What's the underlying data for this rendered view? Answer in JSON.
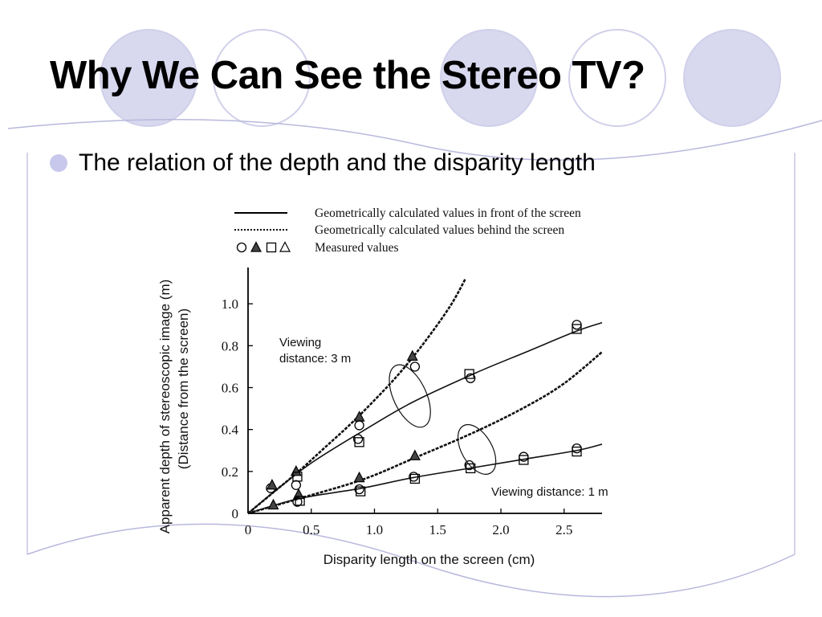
{
  "slide": {
    "title": "Why We Can See the Stereo TV?",
    "bullet": "The relation of the depth and the disparity length"
  },
  "theme": {
    "circle_fill": "#d8d8ee",
    "circle_stroke": "#d0d0ea",
    "accent_line": "#b8b8dd",
    "bullet_color": "#c8c8ec"
  },
  "legend": {
    "front_label": "Geometrically calculated values in front of the screen",
    "behind_label": "Geometrically calculated values behind the screen",
    "measured_label": "Measured values"
  },
  "chart_data": {
    "type": "line",
    "xlabel": "Disparity length on the screen (cm)",
    "ylabel_line1": "Apparent depth of stereoscopic image    (m)",
    "ylabel_line2": "(Distance from the screen)",
    "xlim": [
      0,
      2.8
    ],
    "ylim": [
      0,
      1.15
    ],
    "xticks": [
      0,
      0.5,
      1.0,
      1.5,
      2.0,
      2.5
    ],
    "xtick_labels": [
      "0",
      "0.5",
      "1.0",
      "1.5",
      "2.0",
      "2.5"
    ],
    "yticks": [
      0,
      0.2,
      0.4,
      0.6,
      0.8,
      1.0
    ],
    "ytick_labels": [
      "0",
      "0.2",
      "0.4",
      "0.6",
      "0.8",
      "1.0"
    ],
    "grid": false,
    "annotations": {
      "viewing_3m_line1": "Viewing",
      "viewing_3m_line2": "distance: 3 m",
      "viewing_1m": "Viewing distance: 1 m"
    },
    "series": [
      {
        "group": "3m",
        "kind": "behind",
        "style": "dashed",
        "x": [
          0,
          0.2,
          0.4,
          0.6,
          0.8,
          1.0,
          1.2,
          1.4,
          1.6,
          1.72
        ],
        "y": [
          0,
          0.1,
          0.2,
          0.31,
          0.42,
          0.54,
          0.67,
          0.82,
          0.99,
          1.12
        ]
      },
      {
        "group": "3m",
        "kind": "front",
        "style": "solid",
        "x": [
          0,
          0.2,
          0.5,
          0.9,
          1.3,
          1.8,
          2.2,
          2.6,
          2.8
        ],
        "y": [
          0,
          0.1,
          0.24,
          0.39,
          0.53,
          0.67,
          0.77,
          0.87,
          0.91
        ]
      },
      {
        "group": "1m",
        "kind": "behind",
        "style": "dashed",
        "x": [
          0,
          0.4,
          0.9,
          1.3,
          1.8,
          2.2,
          2.5,
          2.8
        ],
        "y": [
          0,
          0.07,
          0.16,
          0.26,
          0.39,
          0.51,
          0.62,
          0.77
        ]
      },
      {
        "group": "1m",
        "kind": "front",
        "style": "solid",
        "x": [
          0,
          0.4,
          0.9,
          1.3,
          1.8,
          2.2,
          2.6,
          2.8
        ],
        "y": [
          0,
          0.07,
          0.12,
          0.17,
          0.22,
          0.26,
          0.3,
          0.33
        ]
      }
    ],
    "markers": [
      {
        "x": 0.18,
        "y": 0.12,
        "shape": "circle"
      },
      {
        "x": 0.19,
        "y": 0.135,
        "shape": "triangle-filled"
      },
      {
        "x": 0.2,
        "y": 0.04,
        "shape": "triangle-filled"
      },
      {
        "x": 0.38,
        "y": 0.2,
        "shape": "triangle-filled"
      },
      {
        "x": 0.39,
        "y": 0.175,
        "shape": "square"
      },
      {
        "x": 0.38,
        "y": 0.135,
        "shape": "circle"
      },
      {
        "x": 0.4,
        "y": 0.09,
        "shape": "triangle-filled"
      },
      {
        "x": 0.41,
        "y": 0.06,
        "shape": "square"
      },
      {
        "x": 0.39,
        "y": 0.055,
        "shape": "circle"
      },
      {
        "x": 0.88,
        "y": 0.46,
        "shape": "triangle-filled"
      },
      {
        "x": 0.88,
        "y": 0.42,
        "shape": "circle"
      },
      {
        "x": 0.87,
        "y": 0.355,
        "shape": "circle"
      },
      {
        "x": 0.88,
        "y": 0.34,
        "shape": "square"
      },
      {
        "x": 0.88,
        "y": 0.17,
        "shape": "triangle-filled"
      },
      {
        "x": 0.88,
        "y": 0.115,
        "shape": "circle"
      },
      {
        "x": 0.89,
        "y": 0.105,
        "shape": "square"
      },
      {
        "x": 1.3,
        "y": 0.75,
        "shape": "triangle-filled"
      },
      {
        "x": 1.32,
        "y": 0.7,
        "shape": "circle"
      },
      {
        "x": 1.32,
        "y": 0.275,
        "shape": "triangle-filled"
      },
      {
        "x": 1.31,
        "y": 0.175,
        "shape": "circle"
      },
      {
        "x": 1.32,
        "y": 0.165,
        "shape": "square"
      },
      {
        "x": 1.75,
        "y": 0.665,
        "shape": "square"
      },
      {
        "x": 1.76,
        "y": 0.645,
        "shape": "circle"
      },
      {
        "x": 1.75,
        "y": 0.23,
        "shape": "circle"
      },
      {
        "x": 1.76,
        "y": 0.215,
        "shape": "square"
      },
      {
        "x": 2.18,
        "y": 0.27,
        "shape": "circle"
      },
      {
        "x": 2.18,
        "y": 0.255,
        "shape": "square"
      },
      {
        "x": 2.6,
        "y": 0.9,
        "shape": "circle"
      },
      {
        "x": 2.6,
        "y": 0.88,
        "shape": "square"
      },
      {
        "x": 2.6,
        "y": 0.31,
        "shape": "circle"
      },
      {
        "x": 2.6,
        "y": 0.295,
        "shape": "square"
      }
    ],
    "grouping_ellipses": [
      {
        "group": "3m",
        "cx": 1.28,
        "cy": 0.56,
        "rx_data": 0.13,
        "ry_data": 0.16,
        "rotate_deg": -25
      },
      {
        "group": "1m",
        "cx": 1.81,
        "cy": 0.305,
        "rx_data": 0.12,
        "ry_data": 0.13,
        "rotate_deg": -30
      }
    ]
  }
}
